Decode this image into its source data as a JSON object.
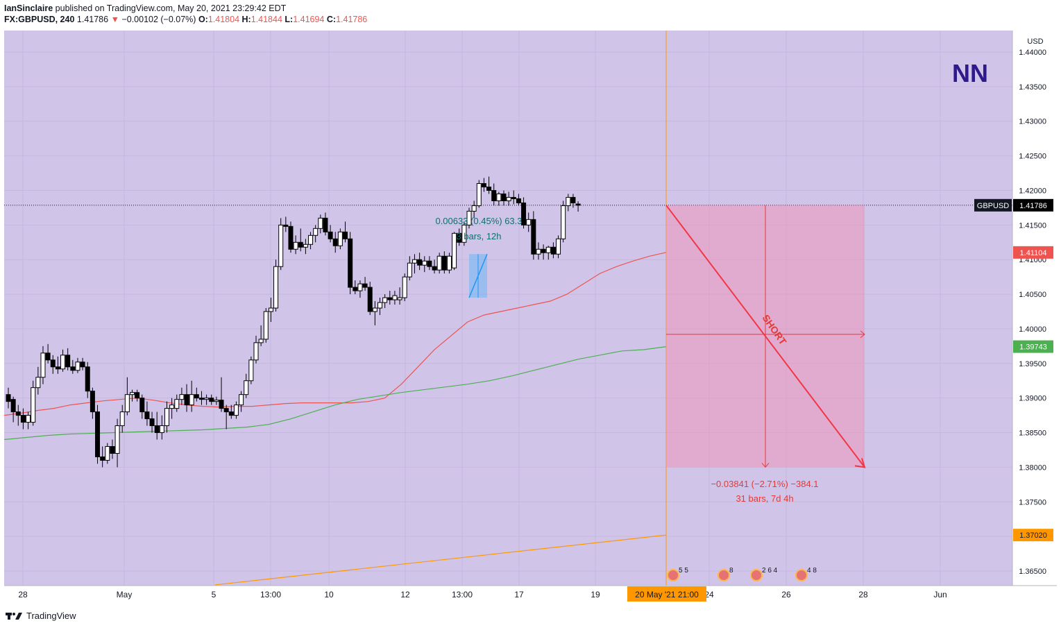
{
  "header": {
    "publisher": "IanSinclaire",
    "published_text": "published on TradingView.com, May 20, 2021 23:29:42 EDT",
    "symbol": "FX:GBPUSD, 240",
    "last": "1.41786",
    "change": "−0.00102 (−0.07%)",
    "o_label": "O:",
    "o": "1.41804",
    "h_label": "H:",
    "h": "1.41844",
    "l_label": "L:",
    "l": "1.41694",
    "c_label": "C:",
    "c": "1.41786"
  },
  "footer": {
    "brand": "TradingView"
  },
  "chart_data": {
    "type": "candlestick",
    "currency": "USD",
    "watermark": "NN",
    "y_ticks": [
      "1.44000",
      "1.43500",
      "1.43000",
      "1.42500",
      "1.42000",
      "1.41500",
      "1.41000",
      "1.40500",
      "1.40000",
      "1.39500",
      "1.39000",
      "1.38500",
      "1.38000",
      "1.37500",
      "1.37000",
      "1.36500"
    ],
    "y_tick_values": [
      1.44,
      1.435,
      1.43,
      1.425,
      1.42,
      1.415,
      1.41,
      1.405,
      1.4,
      1.395,
      1.39,
      1.385,
      1.38,
      1.375,
      1.37,
      1.365
    ],
    "x_labels": [
      "28",
      "May",
      "5",
      "13:00",
      "10",
      "12",
      "13:00",
      "17",
      "19",
      "24",
      "26",
      "28",
      "Jun"
    ],
    "x_label_dates": [
      "2021-04-28",
      "2021-05-01",
      "2021-05-05",
      "2021-05-06 13:00",
      "2021-05-10",
      "2021-05-12",
      "2021-05-13 13:00",
      "2021-05-17",
      "2021-05-19",
      "2021-05-24",
      "2021-05-26",
      "2021-05-28",
      "2021-06-01"
    ],
    "current_time_label": "20 May '21   21:00",
    "price_labels": [
      {
        "text": "GBPUSD",
        "value": "1.41786",
        "color": "#000000"
      },
      {
        "text": "",
        "value": "1.41104",
        "color": "#ef5350"
      },
      {
        "text": "",
        "value": "1.39743",
        "color": "#4caf50"
      },
      {
        "text": "",
        "value": "1.37020",
        "color": "#ff9800"
      }
    ],
    "candles": [
      {
        "o": 1.3905,
        "h": 1.3915,
        "l": 1.3885,
        "c": 1.3895
      },
      {
        "o": 1.3898,
        "h": 1.3902,
        "l": 1.3865,
        "c": 1.388
      },
      {
        "o": 1.388,
        "h": 1.389,
        "l": 1.386,
        "c": 1.3875
      },
      {
        "o": 1.3875,
        "h": 1.3885,
        "l": 1.3855,
        "c": 1.3865
      },
      {
        "o": 1.3865,
        "h": 1.388,
        "l": 1.3855,
        "c": 1.3875
      },
      {
        "o": 1.3865,
        "h": 1.3925,
        "l": 1.386,
        "c": 1.3915
      },
      {
        "o": 1.3915,
        "h": 1.3945,
        "l": 1.3905,
        "c": 1.393
      },
      {
        "o": 1.393,
        "h": 1.3975,
        "l": 1.392,
        "c": 1.3965
      },
      {
        "o": 1.3965,
        "h": 1.3978,
        "l": 1.395,
        "c": 1.3955
      },
      {
        "o": 1.3955,
        "h": 1.3962,
        "l": 1.3935,
        "c": 1.3945
      },
      {
        "o": 1.3945,
        "h": 1.396,
        "l": 1.3935,
        "c": 1.3942
      },
      {
        "o": 1.3942,
        "h": 1.397,
        "l": 1.3938,
        "c": 1.3962
      },
      {
        "o": 1.3962,
        "h": 1.3972,
        "l": 1.394,
        "c": 1.3945
      },
      {
        "o": 1.3945,
        "h": 1.3955,
        "l": 1.3935,
        "c": 1.394
      },
      {
        "o": 1.394,
        "h": 1.3958,
        "l": 1.3936,
        "c": 1.3952
      },
      {
        "o": 1.3952,
        "h": 1.3958,
        "l": 1.394,
        "c": 1.3945
      },
      {
        "o": 1.3945,
        "h": 1.3952,
        "l": 1.39,
        "c": 1.391
      },
      {
        "o": 1.391,
        "h": 1.3915,
        "l": 1.387,
        "c": 1.388
      },
      {
        "o": 1.388,
        "h": 1.389,
        "l": 1.3805,
        "c": 1.3815
      },
      {
        "o": 1.3815,
        "h": 1.383,
        "l": 1.38,
        "c": 1.381
      },
      {
        "o": 1.381,
        "h": 1.3835,
        "l": 1.3805,
        "c": 1.383
      },
      {
        "o": 1.383,
        "h": 1.384,
        "l": 1.3812,
        "c": 1.382
      },
      {
        "o": 1.382,
        "h": 1.387,
        "l": 1.38,
        "c": 1.386
      },
      {
        "o": 1.386,
        "h": 1.389,
        "l": 1.385,
        "c": 1.388
      },
      {
        "o": 1.388,
        "h": 1.393,
        "l": 1.3875,
        "c": 1.3905
      },
      {
        "o": 1.3905,
        "h": 1.3912,
        "l": 1.3895,
        "c": 1.3908
      },
      {
        "o": 1.3908,
        "h": 1.3912,
        "l": 1.3895,
        "c": 1.39
      },
      {
        "o": 1.39,
        "h": 1.3905,
        "l": 1.387,
        "c": 1.388
      },
      {
        "o": 1.388,
        "h": 1.3895,
        "l": 1.386,
        "c": 1.387
      },
      {
        "o": 1.387,
        "h": 1.388,
        "l": 1.385,
        "c": 1.386
      },
      {
        "o": 1.386,
        "h": 1.388,
        "l": 1.384,
        "c": 1.385
      },
      {
        "o": 1.385,
        "h": 1.3875,
        "l": 1.384,
        "c": 1.386
      },
      {
        "o": 1.386,
        "h": 1.3895,
        "l": 1.385,
        "c": 1.3885
      },
      {
        "o": 1.3885,
        "h": 1.39,
        "l": 1.387,
        "c": 1.389
      },
      {
        "o": 1.3885,
        "h": 1.3905,
        "l": 1.388,
        "c": 1.3898
      },
      {
        "o": 1.3898,
        "h": 1.3915,
        "l": 1.389,
        "c": 1.3905
      },
      {
        "o": 1.3905,
        "h": 1.392,
        "l": 1.388,
        "c": 1.389
      },
      {
        "o": 1.389,
        "h": 1.3925,
        "l": 1.388,
        "c": 1.3905
      },
      {
        "o": 1.3905,
        "h": 1.3915,
        "l": 1.3895,
        "c": 1.39
      },
      {
        "o": 1.39,
        "h": 1.391,
        "l": 1.389,
        "c": 1.3898
      },
      {
        "o": 1.3898,
        "h": 1.3905,
        "l": 1.389,
        "c": 1.39
      },
      {
        "o": 1.39,
        "h": 1.3905,
        "l": 1.389,
        "c": 1.3895
      },
      {
        "o": 1.3895,
        "h": 1.3902,
        "l": 1.389,
        "c": 1.3897
      },
      {
        "o": 1.3897,
        "h": 1.393,
        "l": 1.388,
        "c": 1.3885
      },
      {
        "o": 1.3885,
        "h": 1.389,
        "l": 1.3855,
        "c": 1.388
      },
      {
        "o": 1.388,
        "h": 1.389,
        "l": 1.387,
        "c": 1.3875
      },
      {
        "o": 1.3875,
        "h": 1.3895,
        "l": 1.387,
        "c": 1.389
      },
      {
        "o": 1.389,
        "h": 1.391,
        "l": 1.388,
        "c": 1.3905
      },
      {
        "o": 1.3905,
        "h": 1.3935,
        "l": 1.39,
        "c": 1.3925
      },
      {
        "o": 1.3925,
        "h": 1.396,
        "l": 1.392,
        "c": 1.3955
      },
      {
        "o": 1.3955,
        "h": 1.399,
        "l": 1.395,
        "c": 1.398
      },
      {
        "o": 1.398,
        "h": 1.4005,
        "l": 1.3975,
        "c": 1.3985
      },
      {
        "o": 1.3985,
        "h": 1.403,
        "l": 1.398,
        "c": 1.4025
      },
      {
        "o": 1.4025,
        "h": 1.4045,
        "l": 1.401,
        "c": 1.403
      },
      {
        "o": 1.403,
        "h": 1.41,
        "l": 1.4025,
        "c": 1.409
      },
      {
        "o": 1.409,
        "h": 1.416,
        "l": 1.4085,
        "c": 1.415
      },
      {
        "o": 1.415,
        "h": 1.4162,
        "l": 1.414,
        "c": 1.4148
      },
      {
        "o": 1.4148,
        "h": 1.4155,
        "l": 1.411,
        "c": 1.4115
      },
      {
        "o": 1.4115,
        "h": 1.4135,
        "l": 1.4108,
        "c": 1.4125
      },
      {
        "o": 1.4125,
        "h": 1.4145,
        "l": 1.4112,
        "c": 1.4118
      },
      {
        "o": 1.4118,
        "h": 1.413,
        "l": 1.4108,
        "c": 1.4122
      },
      {
        "o": 1.4122,
        "h": 1.414,
        "l": 1.4115,
        "c": 1.4135
      },
      {
        "o": 1.4135,
        "h": 1.415,
        "l": 1.4125,
        "c": 1.4145
      },
      {
        "o": 1.4145,
        "h": 1.4165,
        "l": 1.4138,
        "c": 1.416
      },
      {
        "o": 1.416,
        "h": 1.4168,
        "l": 1.4135,
        "c": 1.414
      },
      {
        "o": 1.414,
        "h": 1.415,
        "l": 1.4125,
        "c": 1.413
      },
      {
        "o": 1.413,
        "h": 1.414,
        "l": 1.411,
        "c": 1.412
      },
      {
        "o": 1.412,
        "h": 1.4145,
        "l": 1.4115,
        "c": 1.414
      },
      {
        "o": 1.414,
        "h": 1.4155,
        "l": 1.4125,
        "c": 1.413
      },
      {
        "o": 1.413,
        "h": 1.414,
        "l": 1.405,
        "c": 1.406
      },
      {
        "o": 1.406,
        "h": 1.407,
        "l": 1.405,
        "c": 1.4055
      },
      {
        "o": 1.4055,
        "h": 1.407,
        "l": 1.4045,
        "c": 1.4065
      },
      {
        "o": 1.4065,
        "h": 1.4075,
        "l": 1.4055,
        "c": 1.406
      },
      {
        "o": 1.406,
        "h": 1.4068,
        "l": 1.402,
        "c": 1.4025
      },
      {
        "o": 1.4025,
        "h": 1.404,
        "l": 1.4005,
        "c": 1.403
      },
      {
        "o": 1.403,
        "h": 1.4045,
        "l": 1.402,
        "c": 1.4038
      },
      {
        "o": 1.4038,
        "h": 1.405,
        "l": 1.403,
        "c": 1.4045
      },
      {
        "o": 1.4045,
        "h": 1.4055,
        "l": 1.4035,
        "c": 1.4042
      },
      {
        "o": 1.4042,
        "h": 1.4055,
        "l": 1.4035,
        "c": 1.4048
      },
      {
        "o": 1.4042,
        "h": 1.406,
        "l": 1.4035,
        "c": 1.4045
      },
      {
        "o": 1.4045,
        "h": 1.408,
        "l": 1.404,
        "c": 1.4075
      },
      {
        "o": 1.4075,
        "h": 1.4105,
        "l": 1.407,
        "c": 1.4095
      },
      {
        "o": 1.4095,
        "h": 1.4108,
        "l": 1.408,
        "c": 1.41
      },
      {
        "o": 1.41,
        "h": 1.411,
        "l": 1.4085,
        "c": 1.4092
      },
      {
        "o": 1.4092,
        "h": 1.4105,
        "l": 1.4082,
        "c": 1.4098
      },
      {
        "o": 1.4098,
        "h": 1.4105,
        "l": 1.4085,
        "c": 1.409
      },
      {
        "o": 1.409,
        "h": 1.41,
        "l": 1.408,
        "c": 1.4085
      },
      {
        "o": 1.4085,
        "h": 1.411,
        "l": 1.408,
        "c": 1.4105
      },
      {
        "o": 1.4105,
        "h": 1.4112,
        "l": 1.408,
        "c": 1.4085
      },
      {
        "o": 1.4085,
        "h": 1.411,
        "l": 1.408,
        "c": 1.4105
      },
      {
        "o": 1.4088,
        "h": 1.414,
        "l": 1.4085,
        "c": 1.4138
      },
      {
        "o": 1.4138,
        "h": 1.4145,
        "l": 1.412,
        "c": 1.4125
      },
      {
        "o": 1.4125,
        "h": 1.4155,
        "l": 1.412,
        "c": 1.415
      },
      {
        "o": 1.415,
        "h": 1.4175,
        "l": 1.4145,
        "c": 1.417
      },
      {
        "o": 1.417,
        "h": 1.4185,
        "l": 1.416,
        "c": 1.4178
      },
      {
        "o": 1.4178,
        "h": 1.4215,
        "l": 1.4175,
        "c": 1.421
      },
      {
        "o": 1.421,
        "h": 1.4218,
        "l": 1.4198,
        "c": 1.4205
      },
      {
        "o": 1.4205,
        "h": 1.422,
        "l": 1.4195,
        "c": 1.42
      },
      {
        "o": 1.42,
        "h": 1.421,
        "l": 1.4178,
        "c": 1.4185
      },
      {
        "o": 1.4185,
        "h": 1.4198,
        "l": 1.4178,
        "c": 1.4195
      },
      {
        "o": 1.4195,
        "h": 1.42,
        "l": 1.4178,
        "c": 1.4185
      },
      {
        "o": 1.4185,
        "h": 1.4198,
        "l": 1.4178,
        "c": 1.419
      },
      {
        "o": 1.419,
        "h": 1.42,
        "l": 1.418,
        "c": 1.4188
      },
      {
        "o": 1.4188,
        "h": 1.4195,
        "l": 1.4178,
        "c": 1.4182
      },
      {
        "o": 1.4182,
        "h": 1.419,
        "l": 1.4145,
        "c": 1.415
      },
      {
        "o": 1.415,
        "h": 1.4168,
        "l": 1.414,
        "c": 1.4158
      },
      {
        "o": 1.4158,
        "h": 1.417,
        "l": 1.41,
        "c": 1.4108
      },
      {
        "o": 1.4108,
        "h": 1.4125,
        "l": 1.41,
        "c": 1.4115
      },
      {
        "o": 1.4115,
        "h": 1.4122,
        "l": 1.41,
        "c": 1.411
      },
      {
        "o": 1.411,
        "h": 1.412,
        "l": 1.41,
        "c": 1.4118
      },
      {
        "o": 1.4118,
        "h": 1.4125,
        "l": 1.4102,
        "c": 1.4108
      },
      {
        "o": 1.4108,
        "h": 1.4135,
        "l": 1.4102,
        "c": 1.413
      },
      {
        "o": 1.413,
        "h": 1.4185,
        "l": 1.4125,
        "c": 1.4178
      },
      {
        "o": 1.4178,
        "h": 1.4195,
        "l": 1.417,
        "c": 1.419
      },
      {
        "o": 1.419,
        "h": 1.4195,
        "l": 1.4175,
        "c": 1.4182
      },
      {
        "o": 1.41804,
        "h": 1.41844,
        "l": 1.41694,
        "c": 1.41786
      }
    ],
    "ma_red": [
      1.3875,
      1.3878,
      1.3882,
      1.3885,
      1.389,
      1.3893,
      1.3896,
      1.3898,
      1.39,
      1.3897,
      1.3893,
      1.389,
      1.3888,
      1.3887,
      1.3888,
      1.3888,
      1.389,
      1.3892,
      1.3893,
      1.3893,
      1.3893,
      1.3893,
      1.3895,
      1.39,
      1.392,
      1.3945,
      1.397,
      1.399,
      1.401,
      1.402,
      1.4025,
      1.403,
      1.4035,
      1.404,
      1.405,
      1.4065,
      1.408,
      1.409,
      1.4098,
      1.4105,
      1.41104
    ],
    "ma_green": [
      1.384,
      1.3843,
      1.3846,
      1.3848,
      1.3849,
      1.385,
      1.3851,
      1.3852,
      1.3853,
      1.3854,
      1.3856,
      1.3858,
      1.3862,
      1.387,
      1.388,
      1.389,
      1.3898,
      1.3903,
      1.3908,
      1.3912,
      1.3916,
      1.392,
      1.3925,
      1.3932,
      1.394,
      1.3948,
      1.3956,
      1.3962,
      1.3968,
      1.397,
      1.39743
    ],
    "ma_orange": {
      "start": 1.363,
      "end": 1.3702
    },
    "measure_up": {
      "text1": "0.00633 (0.45%) 63.3",
      "text2": "3 bars, 12h"
    },
    "position": {
      "label": "SHORT",
      "entry": 1.41786,
      "target": 1.38,
      "text1": "−0.03841 (−2.71%) −384.1",
      "text2": "31 bars, 7d 4h"
    },
    "events": [
      "5",
      "5",
      "8",
      "2 6 4",
      "4 8"
    ]
  }
}
